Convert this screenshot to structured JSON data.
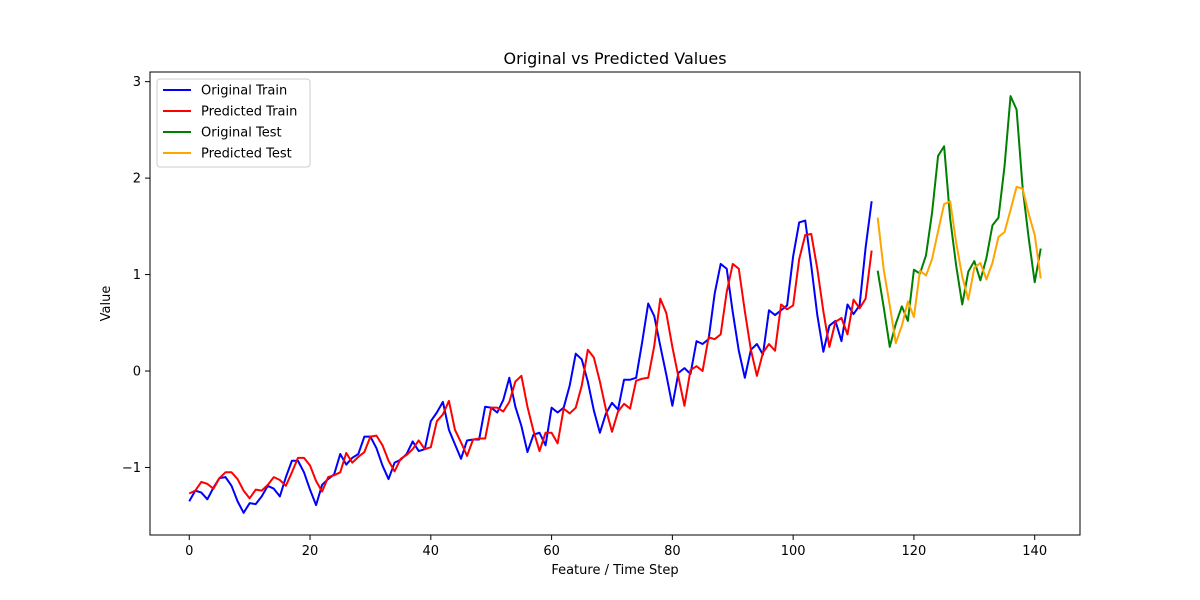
{
  "chart_data": {
    "type": "line",
    "title": "Original vs Predicted Values",
    "xlabel": "Feature / Time Step",
    "ylabel": "Value",
    "xlim": [
      -6.5,
      147.5
    ],
    "ylim": [
      -1.7,
      3.1
    ],
    "xticks": [
      0,
      20,
      40,
      60,
      80,
      100,
      120,
      140
    ],
    "xtick_labels": [
      "0",
      "20",
      "40",
      "60",
      "80",
      "100",
      "120",
      "140"
    ],
    "yticks": [
      -1,
      0,
      1,
      2,
      3
    ],
    "ytick_labels": [
      "−1",
      "0",
      "1",
      "2",
      "3"
    ],
    "grid": false,
    "legend_position": "top-left",
    "series": [
      {
        "name": "Original Train",
        "color": "#0000ff",
        "x_start": 0,
        "values": [
          -1.35,
          -1.24,
          -1.26,
          -1.33,
          -1.21,
          -1.11,
          -1.1,
          -1.19,
          -1.35,
          -1.47,
          -1.37,
          -1.38,
          -1.3,
          -1.19,
          -1.22,
          -1.3,
          -1.1,
          -0.93,
          -0.93,
          -1.05,
          -1.23,
          -1.39,
          -1.18,
          -1.12,
          -1.07,
          -0.86,
          -0.97,
          -0.9,
          -0.86,
          -0.68,
          -0.68,
          -0.8,
          -0.98,
          -1.12,
          -0.95,
          -0.92,
          -0.86,
          -0.73,
          -0.83,
          -0.81,
          -0.52,
          -0.43,
          -0.32,
          -0.61,
          -0.76,
          -0.91,
          -0.72,
          -0.71,
          -0.71,
          -0.37,
          -0.38,
          -0.43,
          -0.3,
          -0.07,
          -0.37,
          -0.57,
          -0.84,
          -0.66,
          -0.64,
          -0.77,
          -0.38,
          -0.43,
          -0.38,
          -0.15,
          0.18,
          0.12,
          -0.11,
          -0.41,
          -0.64,
          -0.44,
          -0.33,
          -0.4,
          -0.09,
          -0.09,
          -0.07,
          0.3,
          0.7,
          0.57,
          0.26,
          -0.04,
          -0.36,
          -0.02,
          0.03,
          -0.03,
          0.31,
          0.28,
          0.33,
          0.8,
          1.11,
          1.06,
          0.61,
          0.21,
          -0.07,
          0.22,
          0.28,
          0.17,
          0.63,
          0.58,
          0.63,
          0.68,
          1.19,
          1.54,
          1.56,
          1.09,
          0.58,
          0.2,
          0.47,
          0.52,
          0.31,
          0.69,
          0.59,
          0.68,
          1.28,
          1.76
        ]
      },
      {
        "name": "Predicted Train",
        "color": "#ff0000",
        "x_start": 0,
        "values": [
          -1.27,
          -1.24,
          -1.15,
          -1.17,
          -1.22,
          -1.11,
          -1.05,
          -1.05,
          -1.12,
          -1.24,
          -1.32,
          -1.23,
          -1.24,
          -1.18,
          -1.1,
          -1.13,
          -1.19,
          -1.05,
          -0.9,
          -0.9,
          -0.98,
          -1.14,
          -1.25,
          -1.1,
          -1.08,
          -1.05,
          -0.85,
          -0.95,
          -0.89,
          -0.84,
          -0.68,
          -0.67,
          -0.77,
          -0.93,
          -1.04,
          -0.91,
          -0.87,
          -0.81,
          -0.72,
          -0.81,
          -0.79,
          -0.52,
          -0.45,
          -0.31,
          -0.61,
          -0.74,
          -0.88,
          -0.71,
          -0.7,
          -0.7,
          -0.38,
          -0.38,
          -0.42,
          -0.32,
          -0.11,
          -0.05,
          -0.37,
          -0.62,
          -0.83,
          -0.64,
          -0.64,
          -0.75,
          -0.39,
          -0.44,
          -0.38,
          -0.15,
          0.22,
          0.14,
          -0.11,
          -0.4,
          -0.63,
          -0.42,
          -0.34,
          -0.39,
          -0.1,
          -0.08,
          -0.07,
          0.26,
          0.75,
          0.6,
          0.25,
          -0.06,
          -0.36,
          0.01,
          0.05,
          0.0,
          0.35,
          0.33,
          0.38,
          0.82,
          1.11,
          1.06,
          0.62,
          0.22,
          -0.05,
          0.19,
          0.28,
          0.21,
          0.69,
          0.64,
          0.68,
          1.16,
          1.41,
          1.42,
          1.06,
          0.62,
          0.25,
          0.51,
          0.55,
          0.38,
          0.74,
          0.65,
          0.75,
          1.25
        ]
      },
      {
        "name": "Original Test",
        "color": "#008000",
        "x_start": 114,
        "values": [
          1.04,
          0.66,
          0.25,
          0.49,
          0.67,
          0.52,
          1.05,
          1.01,
          1.2,
          1.64,
          2.23,
          2.33,
          1.58,
          1.09,
          0.69,
          1.03,
          1.14,
          0.94,
          1.17,
          1.51,
          1.59,
          2.12,
          2.85,
          2.71,
          1.9,
          1.38,
          0.92,
          1.27
        ]
      },
      {
        "name": "Predicted Test",
        "color": "#ffa500",
        "x_start": 114,
        "values": [
          1.59,
          1.05,
          0.68,
          0.29,
          0.47,
          0.72,
          0.56,
          1.04,
          0.99,
          1.16,
          1.45,
          1.73,
          1.76,
          1.33,
          0.98,
          0.74,
          1.07,
          1.12,
          0.95,
          1.12,
          1.39,
          1.44,
          1.67,
          1.91,
          1.89,
          1.63,
          1.41,
          0.96
        ]
      }
    ]
  }
}
